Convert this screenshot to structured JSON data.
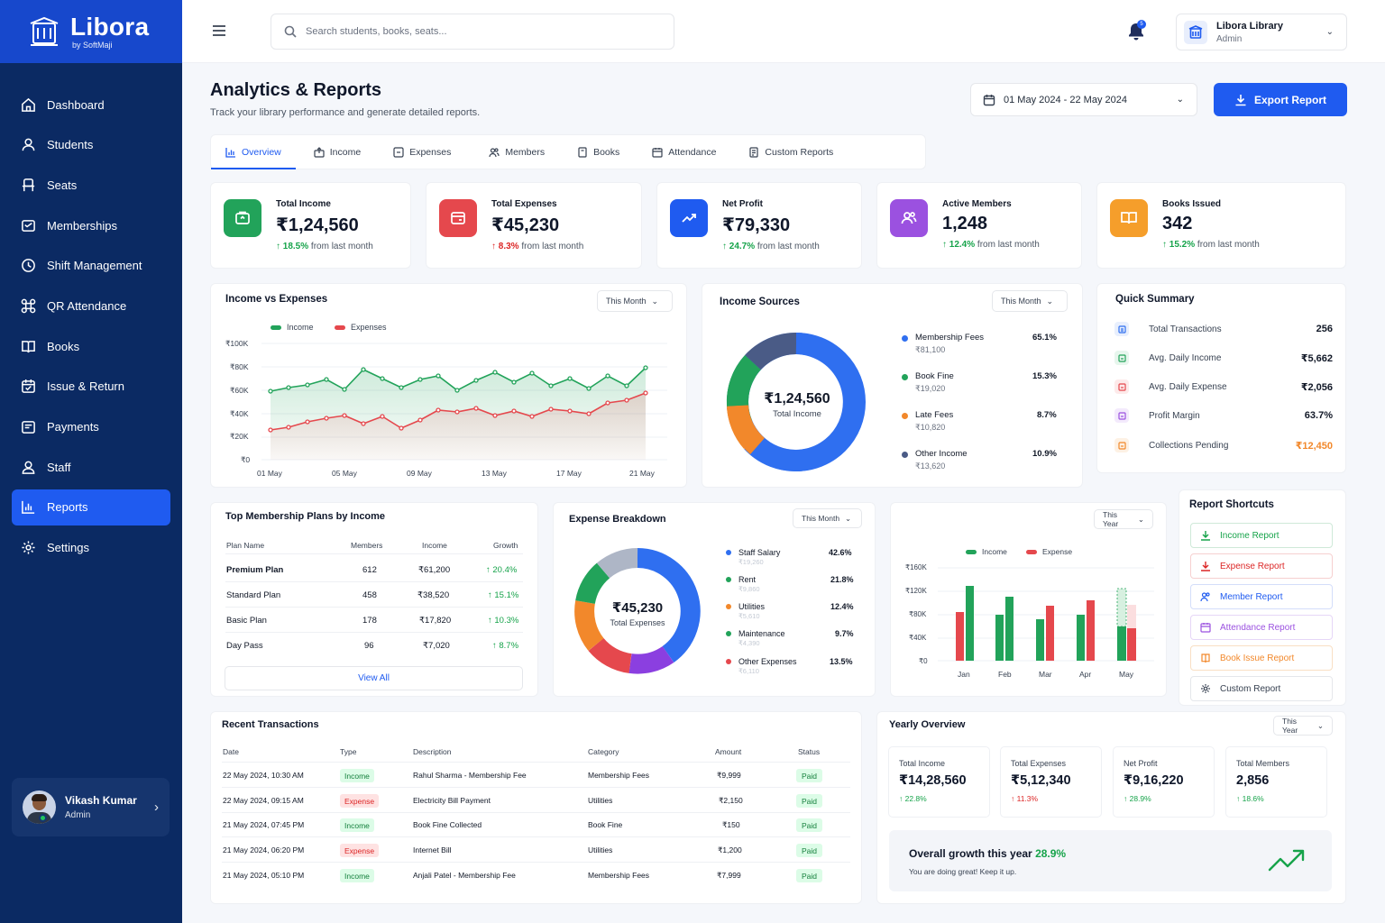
{
  "brand": {
    "name": "Libora",
    "sub": "by SoftMaji"
  },
  "nav": [
    {
      "label": "Dashboard",
      "icon": "home-icon"
    },
    {
      "label": "Students",
      "icon": "user-icon"
    },
    {
      "label": "Seats",
      "icon": "seat-icon"
    },
    {
      "label": "Memberships",
      "icon": "membership-icon"
    },
    {
      "label": "Shift Management",
      "icon": "clock-icon"
    },
    {
      "label": "QR Attendance",
      "icon": "qr-icon"
    },
    {
      "label": "Books",
      "icon": "book-icon"
    },
    {
      "label": "Issue & Return",
      "icon": "calendar-check-icon"
    },
    {
      "label": "Payments",
      "icon": "wallet-icon"
    },
    {
      "label": "Staff",
      "icon": "staff-icon"
    },
    {
      "label": "Reports",
      "icon": "chart-icon"
    },
    {
      "label": "Settings",
      "icon": "gear-icon"
    }
  ],
  "user": {
    "name": "Vikash Kumar",
    "role": "Admin"
  },
  "search": {
    "placeholder": "Search students, books, seats..."
  },
  "notifications": {
    "count": "5"
  },
  "account": {
    "name": "Libora Library",
    "role": "Admin"
  },
  "page": {
    "title": "Analytics & Reports",
    "subtitle": "Track your library performance and generate detailed reports."
  },
  "date_range": "01 May 2024 - 22 May 2024",
  "export_label": "Export Report",
  "tabs": [
    "Overview",
    "Income",
    "Expenses",
    "Members",
    "Books",
    "Attendance",
    "Custom Reports"
  ],
  "kpis": [
    {
      "label": "Total Income",
      "value": "₹1,24,560",
      "change": "↑ 18.5%",
      "suffix": "from last month",
      "color": "#22a35a"
    },
    {
      "label": "Total Expenses",
      "value": "₹45,230",
      "change": "↑ 8.3%",
      "suffix": "from last month",
      "color": "#e5484d"
    },
    {
      "label": "Net Profit",
      "value": "₹79,330",
      "change": "↑ 24.7%",
      "suffix": "from last month",
      "color": "#1f5bf0"
    },
    {
      "label": "Active Members",
      "value": "1,248",
      "change": "↑ 12.4%",
      "suffix": "from last month",
      "color": "#9b51e0"
    },
    {
      "label": "Books Issued",
      "value": "342",
      "change": "↑ 15.2%",
      "suffix": "from last month",
      "color": "#f59e2b"
    }
  ],
  "income_vs_expenses": {
    "title": "Income vs Expenses",
    "filter": "This Month",
    "legend": [
      "Income",
      "Expenses"
    ],
    "y_ticks": [
      "₹100K",
      "₹80K",
      "₹60K",
      "₹40K",
      "₹20K",
      "₹0"
    ],
    "x_ticks": [
      "01 May",
      "05 May",
      "09 May",
      "13 May",
      "17 May",
      "21 May"
    ]
  },
  "income_sources": {
    "title": "Income Sources",
    "filter": "This Month",
    "center_value": "₹1,24,560",
    "center_label": "Total Income",
    "items": [
      {
        "name": "Membership Fees",
        "amount": "₹81,100",
        "pct": "65.1%",
        "color": "#2f6ff0"
      },
      {
        "name": "Book Fine",
        "amount": "₹19,020",
        "pct": "15.3%",
        "color": "#22a35a"
      },
      {
        "name": "Late Fees",
        "amount": "₹10,820",
        "pct": "8.7%",
        "color": "#f2882b"
      },
      {
        "name": "Other Income",
        "amount": "₹13,620",
        "pct": "10.9%",
        "color": "#4a5b86"
      }
    ]
  },
  "quick_summary": {
    "title": "Quick Summary",
    "items": [
      {
        "label": "Total Transactions",
        "value": "256",
        "color": "#2f6ff0"
      },
      {
        "label": "Avg. Daily Income",
        "value": "₹5,662",
        "color": "#22a35a"
      },
      {
        "label": "Avg. Daily Expense",
        "value": "₹2,056",
        "color": "#e5484d"
      },
      {
        "label": "Profit Margin",
        "value": "63.7%",
        "color": "#9b51e0"
      },
      {
        "label": "Collections Pending",
        "value": "₹12,450",
        "color": "#f2882b"
      }
    ]
  },
  "plans": {
    "title": "Top Membership Plans by Income",
    "headers": [
      "Plan Name",
      "Members",
      "Income",
      "Growth"
    ],
    "rows": [
      {
        "name": "Premium Plan",
        "members": "612",
        "income": "₹61,200",
        "growth": "↑ 20.4%"
      },
      {
        "name": "Standard Plan",
        "members": "458",
        "income": "₹38,520",
        "growth": "↑ 15.1%"
      },
      {
        "name": "Basic Plan",
        "members": "178",
        "income": "₹17,820",
        "growth": "↑ 10.3%"
      },
      {
        "name": "Day Pass",
        "members": "96",
        "income": "₹7,020",
        "growth": "↑ 8.7%"
      }
    ],
    "view_all": "View All"
  },
  "expense_breakdown": {
    "title": "Expense Breakdown",
    "filter": "This Month",
    "center_value": "₹45,230",
    "center_label": "Total Expenses",
    "items": [
      {
        "name": "Staff Salary",
        "amount": "₹19,260",
        "pct": "42.6%",
        "color": "#2f6ff0"
      },
      {
        "name": "Rent",
        "amount": "₹9,860",
        "pct": "21.8%",
        "color": "#22a35a"
      },
      {
        "name": "Utilities",
        "amount": "₹5,610",
        "pct": "12.4%",
        "color": "#f2882b"
      },
      {
        "name": "Maintenance",
        "amount": "₹4,390",
        "pct": "9.7%",
        "color": "#22a35a"
      },
      {
        "name": "Other Expenses",
        "amount": "₹6,110",
        "pct": "13.5%",
        "color": "#e5484d"
      }
    ]
  },
  "monthly_chart": {
    "filter": "This Year",
    "legend": [
      "Income",
      "Expense"
    ],
    "y_ticks": [
      "₹160K",
      "₹120K",
      "₹80K",
      "₹40K",
      "₹0"
    ],
    "months": [
      "Jan",
      "Feb",
      "Mar",
      "Apr",
      "May"
    ]
  },
  "shortcuts": {
    "title": "Report Shortcuts",
    "items": [
      {
        "label": "Income Report",
        "color": "#16a34a",
        "icon": "download-icon"
      },
      {
        "label": "Expense Report",
        "color": "#dc2626",
        "icon": "download-icon"
      },
      {
        "label": "Member Report",
        "color": "#1f5bf0",
        "icon": "users-icon"
      },
      {
        "label": "Attendance Report",
        "color": "#9b51e0",
        "icon": "calendar-icon"
      },
      {
        "label": "Book Issue Report",
        "color": "#f2882b",
        "icon": "book-icon"
      },
      {
        "label": "Custom Report",
        "color": "#374151",
        "icon": "settings-icon"
      }
    ]
  },
  "transactions": {
    "title": "Recent Transactions",
    "headers": [
      "Date",
      "Type",
      "Description",
      "Category",
      "Amount",
      "Status"
    ],
    "rows": [
      {
        "date": "22 May 2024, 10:30 AM",
        "type": "Income",
        "desc": "Rahul Sharma - Membership Fee",
        "cat": "Membership Fees",
        "amt": "₹9,999",
        "status": "Paid"
      },
      {
        "date": "22 May 2024, 09:15 AM",
        "type": "Expense",
        "desc": "Electricity Bill Payment",
        "cat": "Utilities",
        "amt": "₹2,150",
        "status": "Paid"
      },
      {
        "date": "21 May 2024, 07:45 PM",
        "type": "Income",
        "desc": "Book Fine Collected",
        "cat": "Book Fine",
        "amt": "₹150",
        "status": "Paid"
      },
      {
        "date": "21 May 2024, 06:20 PM",
        "type": "Expense",
        "desc": "Internet Bill",
        "cat": "Utilities",
        "amt": "₹1,200",
        "status": "Paid"
      },
      {
        "date": "21 May 2024, 05:10 PM",
        "type": "Income",
        "desc": "Anjali Patel - Membership Fee",
        "cat": "Membership Fees",
        "amt": "₹7,999",
        "status": "Paid"
      }
    ]
  },
  "yearly": {
    "title": "Yearly Overview",
    "filter": "This Year",
    "cards": [
      {
        "label": "Total Income",
        "value": "₹14,28,560",
        "change": "↑ 22.8%",
        "color": "#16a34a"
      },
      {
        "label": "Total Expenses",
        "value": "₹5,12,340",
        "change": "↑ 11.3%",
        "color": "#dc2626"
      },
      {
        "label": "Net Profit",
        "value": "₹9,16,220",
        "change": "↑ 28.9%",
        "color": "#16a34a"
      },
      {
        "label": "Total Members",
        "value": "2,856",
        "change": "↑ 18.6%",
        "color": "#16a34a"
      }
    ],
    "growth_text": "Overall growth this year",
    "growth_value": "28.9%",
    "growth_sub": "You are doing great! Keep it up."
  }
}
